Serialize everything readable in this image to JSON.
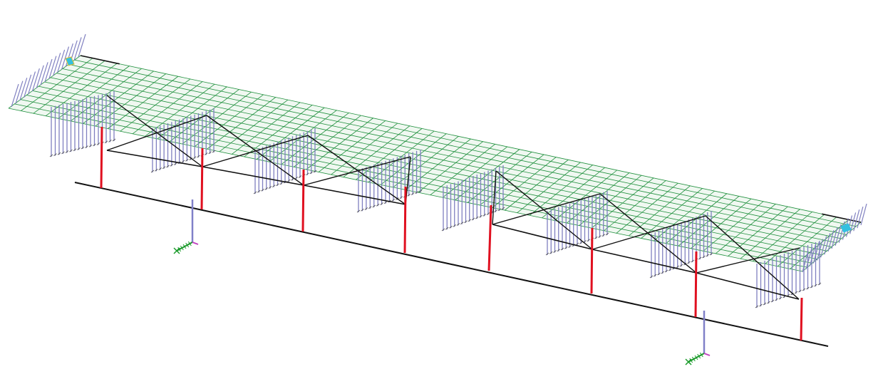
{
  "model": {
    "bays": 8,
    "colors": {
      "mesh": "#1e8f3c",
      "mesh_fill": "#e3f3e6",
      "bracing": "#111111",
      "columns": "#e01020",
      "ground_line": "#111111",
      "loads": "#7f7fc0",
      "load_ticks": "#555555",
      "axis_x": "#1a9a2a",
      "axis_y": "#c040c0",
      "axis_z": "#8080c8",
      "end_marker": "#33c0e0",
      "end_marker_alt": "#e0c030"
    },
    "icons": {
      "axis_triad": "xyz-triad-icon",
      "end_marker": "end-support-icon"
    }
  }
}
